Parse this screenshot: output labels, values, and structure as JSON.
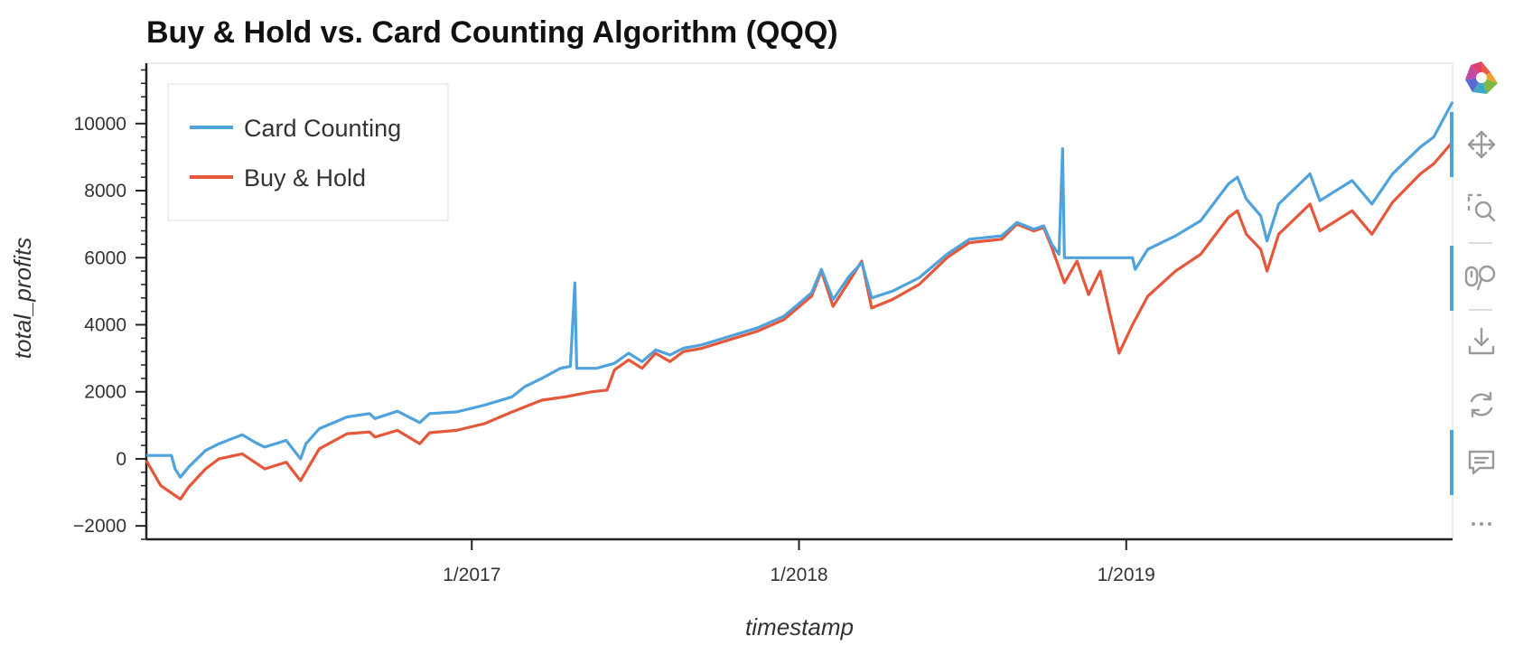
{
  "chart_data": {
    "type": "line",
    "title": "Buy & Hold vs. Card Counting Algorithm (QQQ)",
    "xlabel": "timestamp",
    "ylabel": "total_profits",
    "xlim": [
      "2016-01-04",
      "2019-12-31"
    ],
    "ylim": [
      -2400,
      11800
    ],
    "x_ticks": [
      {
        "date": "2017-01-01",
        "label": "1/2017"
      },
      {
        "date": "2018-01-01",
        "label": "1/2018"
      },
      {
        "date": "2019-01-01",
        "label": "1/2019"
      }
    ],
    "y_ticks": [
      {
        "value": -2000,
        "label": "−2000"
      },
      {
        "value": 0,
        "label": "0"
      },
      {
        "value": 2000,
        "label": "2000"
      },
      {
        "value": 4000,
        "label": "4000"
      },
      {
        "value": 6000,
        "label": "6000"
      },
      {
        "value": 8000,
        "label": "8000"
      },
      {
        "value": 10000,
        "label": "10000"
      }
    ],
    "grid": false,
    "legend_position": "top-left",
    "series": [
      {
        "name": "Card Counting",
        "color": "#4fa2dc",
        "points": [
          [
            "2016-01-04",
            100
          ],
          [
            "2016-01-20",
            100
          ],
          [
            "2016-02-01",
            100
          ],
          [
            "2016-02-05",
            -300
          ],
          [
            "2016-02-11",
            -550
          ],
          [
            "2016-02-20",
            -250
          ],
          [
            "2016-03-10",
            250
          ],
          [
            "2016-03-25",
            450
          ],
          [
            "2016-04-20",
            720
          ],
          [
            "2016-05-05",
            480
          ],
          [
            "2016-05-15",
            350
          ],
          [
            "2016-06-08",
            550
          ],
          [
            "2016-06-24",
            0
          ],
          [
            "2016-06-30",
            450
          ],
          [
            "2016-07-15",
            900
          ],
          [
            "2016-08-15",
            1250
          ],
          [
            "2016-09-09",
            1350
          ],
          [
            "2016-09-15",
            1200
          ],
          [
            "2016-10-10",
            1420
          ],
          [
            "2016-11-04",
            1080
          ],
          [
            "2016-11-15",
            1350
          ],
          [
            "2016-12-15",
            1400
          ],
          [
            "2017-01-15",
            1600
          ],
          [
            "2017-02-15",
            1850
          ],
          [
            "2017-03-01",
            2150
          ],
          [
            "2017-03-20",
            2400
          ],
          [
            "2017-04-10",
            2700
          ],
          [
            "2017-04-21",
            2760
          ],
          [
            "2017-04-26",
            5250
          ],
          [
            "2017-04-28",
            2700
          ],
          [
            "2017-05-20",
            2700
          ],
          [
            "2017-06-09",
            2850
          ],
          [
            "2017-06-25",
            3150
          ],
          [
            "2017-07-10",
            2900
          ],
          [
            "2017-07-25",
            3250
          ],
          [
            "2017-08-10",
            3100
          ],
          [
            "2017-08-25",
            3300
          ],
          [
            "2017-09-15",
            3400
          ],
          [
            "2017-10-15",
            3650
          ],
          [
            "2017-11-15",
            3900
          ],
          [
            "2017-12-15",
            4250
          ],
          [
            "2018-01-15",
            4950
          ],
          [
            "2018-01-26",
            5650
          ],
          [
            "2018-02-08",
            4750
          ],
          [
            "2018-02-26",
            5450
          ],
          [
            "2018-03-12",
            5850
          ],
          [
            "2018-03-23",
            4800
          ],
          [
            "2018-04-15",
            5000
          ],
          [
            "2018-05-15",
            5400
          ],
          [
            "2018-06-15",
            6100
          ],
          [
            "2018-07-10",
            6550
          ],
          [
            "2018-08-15",
            6650
          ],
          [
            "2018-09-01",
            7050
          ],
          [
            "2018-09-20",
            6850
          ],
          [
            "2018-10-01",
            6950
          ],
          [
            "2018-10-10",
            6400
          ],
          [
            "2018-10-18",
            6100
          ],
          [
            "2018-10-22",
            9250
          ],
          [
            "2018-10-24",
            6000
          ],
          [
            "2018-12-15",
            6000
          ],
          [
            "2019-01-01",
            6000
          ],
          [
            "2019-01-08",
            6000
          ],
          [
            "2019-01-11",
            5650
          ],
          [
            "2019-01-25",
            6250
          ],
          [
            "2019-02-25",
            6650
          ],
          [
            "2019-03-25",
            7100
          ],
          [
            "2019-04-25",
            8200
          ],
          [
            "2019-05-05",
            8400
          ],
          [
            "2019-05-15",
            7750
          ],
          [
            "2019-05-31",
            7250
          ],
          [
            "2019-06-07",
            6500
          ],
          [
            "2019-06-20",
            7600
          ],
          [
            "2019-07-25",
            8500
          ],
          [
            "2019-08-05",
            7700
          ],
          [
            "2019-09-10",
            8300
          ],
          [
            "2019-10-02",
            7600
          ],
          [
            "2019-10-25",
            8500
          ],
          [
            "2019-11-25",
            9300
          ],
          [
            "2019-12-10",
            9600
          ],
          [
            "2019-12-31",
            10650
          ]
        ]
      },
      {
        "name": "Buy & Hold",
        "color": "#e5573b",
        "points": [
          [
            "2016-01-04",
            -50
          ],
          [
            "2016-01-20",
            -800
          ],
          [
            "2016-02-11",
            -1200
          ],
          [
            "2016-02-20",
            -850
          ],
          [
            "2016-03-10",
            -300
          ],
          [
            "2016-03-25",
            0
          ],
          [
            "2016-04-20",
            150
          ],
          [
            "2016-05-15",
            -300
          ],
          [
            "2016-06-08",
            -100
          ],
          [
            "2016-06-24",
            -650
          ],
          [
            "2016-07-15",
            300
          ],
          [
            "2016-08-15",
            750
          ],
          [
            "2016-09-09",
            800
          ],
          [
            "2016-09-15",
            650
          ],
          [
            "2016-10-10",
            850
          ],
          [
            "2016-11-04",
            450
          ],
          [
            "2016-11-15",
            780
          ],
          [
            "2016-12-15",
            850
          ],
          [
            "2017-01-15",
            1050
          ],
          [
            "2017-02-15",
            1400
          ],
          [
            "2017-03-20",
            1750
          ],
          [
            "2017-04-15",
            1850
          ],
          [
            "2017-05-15",
            2000
          ],
          [
            "2017-06-01",
            2050
          ],
          [
            "2017-06-09",
            2650
          ],
          [
            "2017-06-25",
            2950
          ],
          [
            "2017-07-10",
            2700
          ],
          [
            "2017-07-25",
            3150
          ],
          [
            "2017-08-10",
            2900
          ],
          [
            "2017-08-25",
            3200
          ],
          [
            "2017-09-15",
            3300
          ],
          [
            "2017-10-15",
            3550
          ],
          [
            "2017-11-15",
            3800
          ],
          [
            "2017-12-15",
            4150
          ],
          [
            "2018-01-15",
            4850
          ],
          [
            "2018-01-26",
            5600
          ],
          [
            "2018-02-08",
            4550
          ],
          [
            "2018-02-26",
            5300
          ],
          [
            "2018-03-12",
            5900
          ],
          [
            "2018-03-23",
            4500
          ],
          [
            "2018-04-15",
            4750
          ],
          [
            "2018-05-15",
            5200
          ],
          [
            "2018-06-15",
            6000
          ],
          [
            "2018-07-10",
            6450
          ],
          [
            "2018-08-15",
            6550
          ],
          [
            "2018-09-01",
            7000
          ],
          [
            "2018-09-20",
            6800
          ],
          [
            "2018-10-01",
            6900
          ],
          [
            "2018-10-10",
            6300
          ],
          [
            "2018-10-24",
            5250
          ],
          [
            "2018-11-07",
            5900
          ],
          [
            "2018-11-20",
            4900
          ],
          [
            "2018-12-03",
            5600
          ],
          [
            "2018-12-14",
            4300
          ],
          [
            "2018-12-24",
            3150
          ],
          [
            "2019-01-08",
            4000
          ],
          [
            "2019-01-25",
            4850
          ],
          [
            "2019-02-25",
            5600
          ],
          [
            "2019-03-25",
            6100
          ],
          [
            "2019-04-25",
            7200
          ],
          [
            "2019-05-05",
            7400
          ],
          [
            "2019-05-15",
            6700
          ],
          [
            "2019-05-31",
            6250
          ],
          [
            "2019-06-07",
            5600
          ],
          [
            "2019-06-20",
            6700
          ],
          [
            "2019-07-25",
            7600
          ],
          [
            "2019-08-05",
            6800
          ],
          [
            "2019-09-10",
            7400
          ],
          [
            "2019-10-02",
            6700
          ],
          [
            "2019-10-25",
            7650
          ],
          [
            "2019-11-25",
            8500
          ],
          [
            "2019-12-10",
            8800
          ],
          [
            "2019-12-31",
            9450
          ]
        ]
      }
    ]
  },
  "toolbar": {
    "tools": [
      {
        "icon": "bokeh-logo-icon",
        "active": false
      },
      {
        "icon": "pan-icon",
        "active": true
      },
      {
        "icon": "box-zoom-icon",
        "active": false
      },
      {
        "icon": "wheel-zoom-icon",
        "active": true
      },
      {
        "icon": "save-icon",
        "active": false
      },
      {
        "icon": "reset-icon",
        "active": false
      },
      {
        "icon": "hover-icon",
        "active": true
      },
      {
        "icon": "more-icon",
        "active": false
      }
    ]
  }
}
